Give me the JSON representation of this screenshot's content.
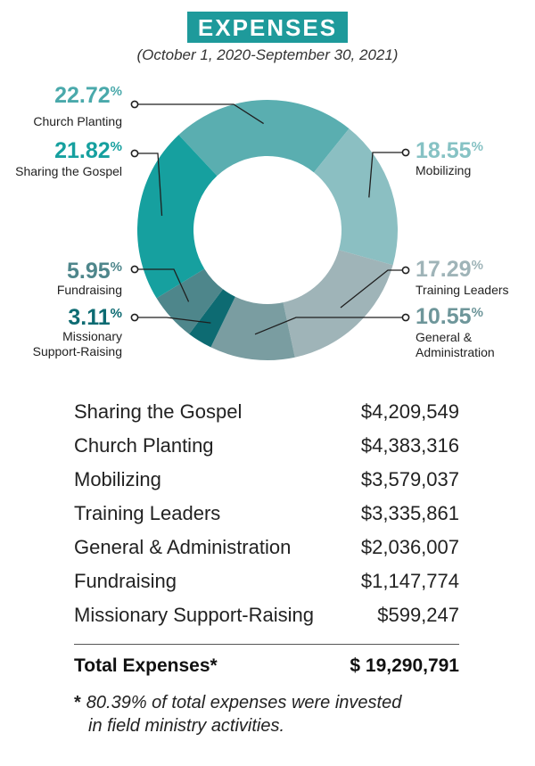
{
  "header": {
    "title": "EXPENSES",
    "subtitle": "(October 1, 2020-September 30, 2021)"
  },
  "chart_data": {
    "type": "pie",
    "donut": true,
    "segments": [
      {
        "name": "Church Planting",
        "percent_label": "22.72",
        "value": 22.72,
        "color": "#5aaeb0",
        "label_color": "#4aa9ab"
      },
      {
        "name": "Mobilizing",
        "percent_label": "18.55",
        "value": 18.55,
        "color": "#8bbfc2",
        "label_color": "#86c2c4"
      },
      {
        "name": "Training Leaders",
        "percent_label": "17.29",
        "value": 17.29,
        "color": "#9fb4b8",
        "label_color": "#9fb4b8"
      },
      {
        "name": "General & Administration",
        "percent_label": "10.55",
        "value": 10.55,
        "color": "#7a9da1",
        "label_color": "#6e969a"
      },
      {
        "name": "Missionary Support-Raising",
        "percent_label": "3.11",
        "value": 3.11,
        "color": "#0d6b72",
        "label_color": "#0d6b72"
      },
      {
        "name": "Fundraising",
        "percent_label": "5.95",
        "value": 5.95,
        "color": "#4e868b",
        "label_color": "#4e868b"
      },
      {
        "name": "Sharing the Gospel",
        "percent_label": "21.82",
        "value": 21.82,
        "color": "#16a09f",
        "label_color": "#16a09f"
      }
    ],
    "percent_sign": "%",
    "label_lines": {
      "Church Planting": [
        "Church Planting"
      ],
      "Mobilizing": [
        "Mobilizing"
      ],
      "Training Leaders": [
        "Training Leaders"
      ],
      "General & Administration": [
        "General &",
        "Administration"
      ],
      "Missionary Support-Raising": [
        "Missionary",
        "Support-Raising"
      ],
      "Fundraising": [
        "Fundraising"
      ],
      "Sharing the Gospel": [
        "Sharing the Gospel"
      ]
    }
  },
  "expenses_table": {
    "rows": [
      {
        "label": "Sharing the Gospel",
        "amount": "$4,209,549"
      },
      {
        "label": "Church Planting",
        "amount": "$4,383,316"
      },
      {
        "label": "Mobilizing",
        "amount": "$3,579,037"
      },
      {
        "label": "Training Leaders",
        "amount": "$3,335,861"
      },
      {
        "label": "General & Administration",
        "amount": "$2,036,007"
      },
      {
        "label": "Fundraising",
        "amount": "$1,147,774"
      },
      {
        "label": "Missionary Support-Raising",
        "amount": "$599,247"
      }
    ],
    "total_label": "Total Expenses*",
    "total_amount": "$ 19,290,791"
  },
  "footnote": {
    "star": "*",
    "line1": "80.39% of total expenses were invested",
    "line2": "in field ministry activities."
  }
}
